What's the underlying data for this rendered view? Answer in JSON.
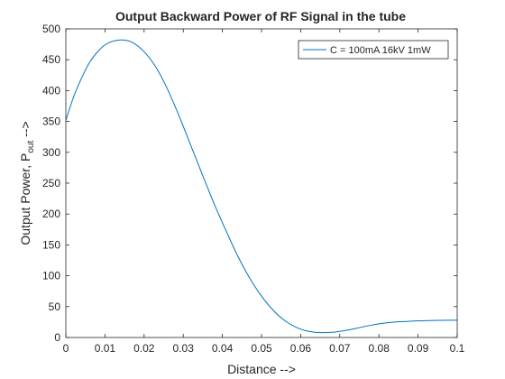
{
  "chart_data": {
    "type": "line",
    "title": "Output Backward Power of RF Signal in the tube",
    "xlabel": "Distance -->",
    "ylabel": {
      "prefix": "Output Power, P",
      "subscript": "out",
      "suffix": " -->"
    },
    "xlim": [
      0,
      0.1
    ],
    "ylim": [
      0,
      500
    ],
    "xticks": [
      0,
      0.01,
      0.02,
      0.03,
      0.04,
      0.05,
      0.06,
      0.07,
      0.08,
      0.09,
      0.1
    ],
    "xtick_labels": [
      "0",
      "0.01",
      "0.02",
      "0.03",
      "0.04",
      "0.05",
      "0.06",
      "0.07",
      "0.08",
      "0.09",
      "0.1"
    ],
    "yticks": [
      0,
      50,
      100,
      150,
      200,
      250,
      300,
      350,
      400,
      450,
      500
    ],
    "ytick_labels": [
      "0",
      "50",
      "100",
      "150",
      "200",
      "250",
      "300",
      "350",
      "400",
      "450",
      "500"
    ],
    "grid": false,
    "legend_position": "top-right",
    "line_color": "#0072BD",
    "series": [
      {
        "name": "C = 100mA 16kV 1mW",
        "x": [
          0,
          0.002,
          0.004,
          0.006,
          0.008,
          0.01,
          0.012,
          0.0145,
          0.017,
          0.02,
          0.023,
          0.026,
          0.029,
          0.032,
          0.035,
          0.038,
          0.041,
          0.044,
          0.047,
          0.05,
          0.053,
          0.056,
          0.059,
          0.062,
          0.0645,
          0.0665,
          0.069,
          0.072,
          0.075,
          0.078,
          0.081,
          0.084,
          0.087,
          0.09,
          0.093,
          0.096,
          0.1
        ],
        "y": [
          352,
          390,
          420,
          445,
          462,
          474,
          480,
          482,
          478,
          463,
          438,
          402,
          358,
          310,
          262,
          215,
          172,
          131,
          96,
          67,
          44,
          27,
          16,
          10,
          8,
          8,
          9,
          12,
          16,
          20,
          23,
          25,
          26,
          27,
          27.5,
          27.8,
          28
        ]
      }
    ]
  }
}
